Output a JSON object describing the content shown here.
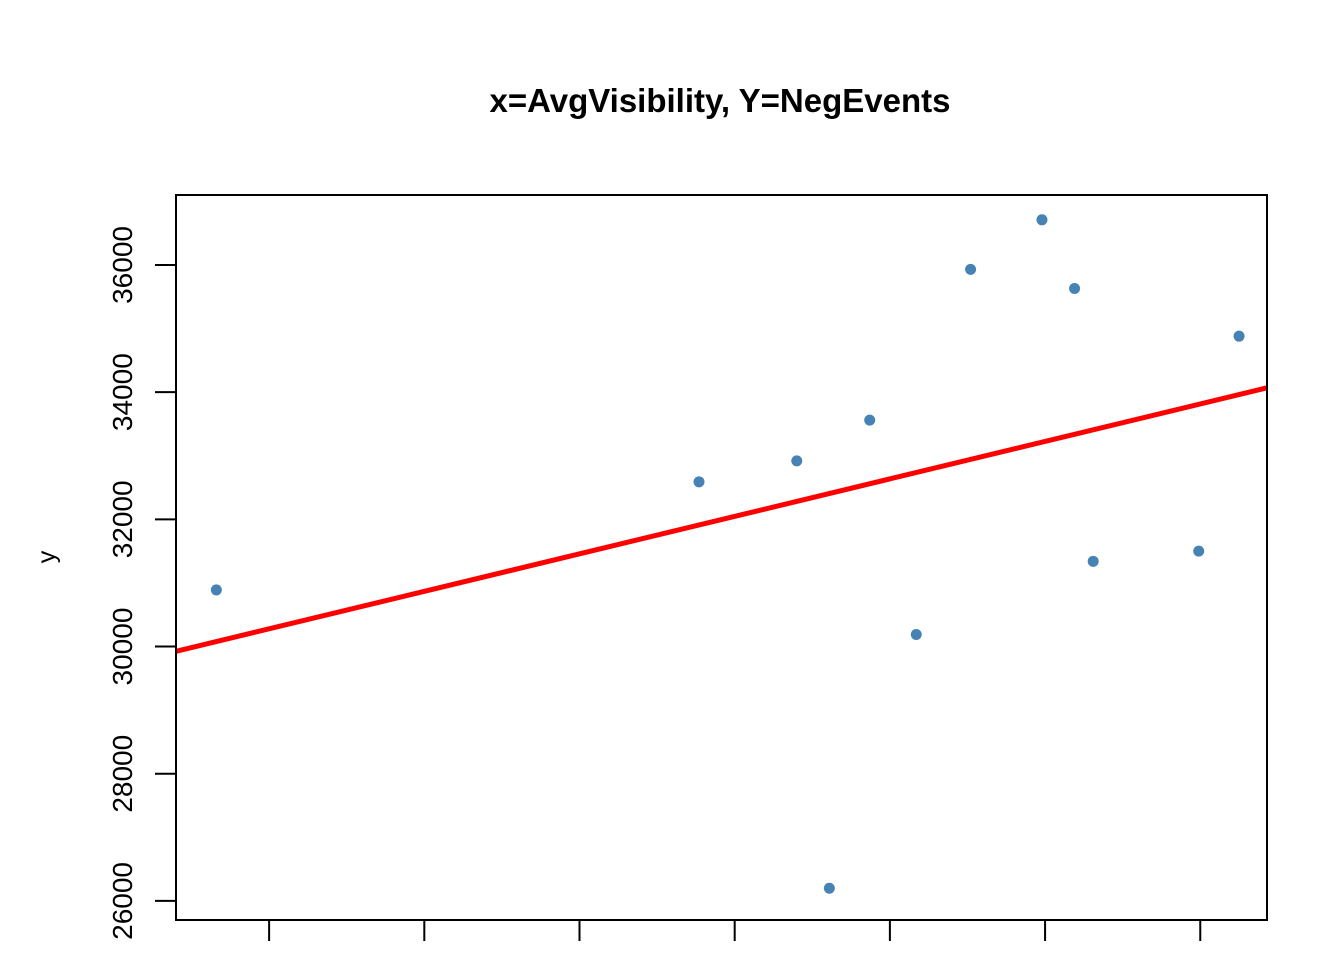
{
  "chart_data": {
    "type": "scatter",
    "title": "x=AvgVisibility, Y=NegEvents",
    "xlabel": "",
    "ylabel": "y",
    "xlim": [
      0.83,
      7.86
    ],
    "ylim": [
      25700,
      37100
    ],
    "x_ticks": [
      1.43,
      2.43,
      3.43,
      4.43,
      5.43,
      6.43,
      7.43
    ],
    "y_ticks": [
      26000,
      28000,
      30000,
      32000,
      34000,
      36000
    ],
    "y_tick_labels": [
      "26000",
      "28000",
      "30000",
      "32000",
      "34000",
      "36000"
    ],
    "grid": false,
    "legend": "none",
    "series": [
      {
        "points": [
          {
            "x": 1.09,
            "y": 30890
          },
          {
            "x": 4.2,
            "y": 32590
          },
          {
            "x": 4.83,
            "y": 32920
          },
          {
            "x": 5.04,
            "y": 26200
          },
          {
            "x": 5.3,
            "y": 33560
          },
          {
            "x": 5.6,
            "y": 30190
          },
          {
            "x": 5.95,
            "y": 35930
          },
          {
            "x": 6.41,
            "y": 36710
          },
          {
            "x": 6.62,
            "y": 35630
          },
          {
            "x": 6.74,
            "y": 31340
          },
          {
            "x": 7.42,
            "y": 31500
          },
          {
            "x": 7.68,
            "y": 34880
          }
        ]
      }
    ],
    "regression_line": {
      "intercept": 29436.0,
      "slope": 589.3
    },
    "colors": {
      "points": "#4682B4",
      "line": "#FF0000",
      "axes": "#000000"
    }
  }
}
